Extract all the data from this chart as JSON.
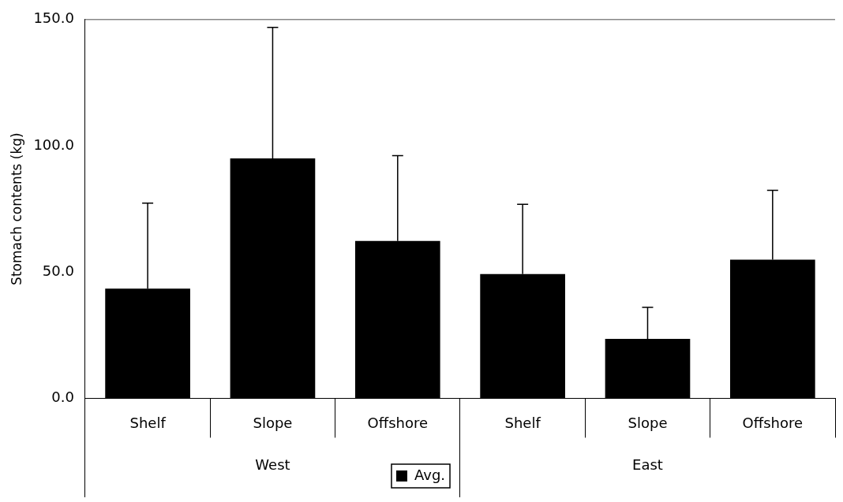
{
  "chart_data": {
    "type": "bar",
    "ylabel": "Stomach contents (kg)",
    "categories": [
      "Shelf",
      "Slope",
      "Offshore",
      "Shelf",
      "Slope",
      "Offshore"
    ],
    "series": [
      {
        "name": "Avg.",
        "color": "#000000",
        "values": [
          43.4,
          95.0,
          62.3,
          49.2,
          23.5,
          54.9
        ],
        "errors": [
          [
            43.4,
            77.3
          ],
          [
            95.0,
            146.9
          ],
          [
            62.3,
            96.1
          ],
          [
            49.2,
            76.8
          ],
          [
            23.5,
            36.0
          ],
          [
            54.9,
            82.4
          ]
        ]
      }
    ],
    "annotations": [
      "West",
      "East"
    ],
    "ylim": [
      0,
      150
    ],
    "yticks": [
      {
        "value": 0,
        "label": "0.0"
      },
      {
        "value": 50,
        "label": "50.0"
      },
      {
        "value": 100,
        "label": "100.0"
      },
      {
        "value": 150,
        "label": "150.0"
      }
    ],
    "grid": false,
    "legend": "bottom"
  }
}
